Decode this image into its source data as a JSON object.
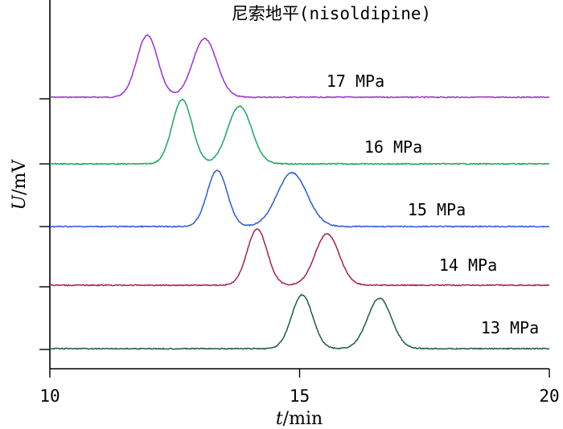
{
  "chart_data": {
    "type": "line",
    "title": "尼索地平(nisoldipine)",
    "xlabel": {
      "symbol": "t",
      "unit": "min"
    },
    "ylabel": {
      "symbol": "U",
      "unit": "mV"
    },
    "xlim": [
      10,
      20
    ],
    "xticks": [
      10,
      15,
      20
    ],
    "xtick_labels": [
      "10",
      "15",
      "20"
    ],
    "series": [
      {
        "name": "17 MPa",
        "color": "#9b30d9",
        "baseline": 0.0,
        "peaks": [
          {
            "x": 11.95,
            "height": 0.77,
            "sigma": 0.21
          },
          {
            "x": 13.1,
            "height": 0.73,
            "sigma": 0.24
          }
        ]
      },
      {
        "name": "16 MPa",
        "color": "#1aa85a",
        "baseline": 0.0,
        "peaks": [
          {
            "x": 12.65,
            "height": 0.8,
            "sigma": 0.2
          },
          {
            "x": 13.8,
            "height": 0.72,
            "sigma": 0.24
          }
        ]
      },
      {
        "name": "15 MPa",
        "color": "#2a5bd7",
        "baseline": 0.0,
        "peaks": [
          {
            "x": 13.35,
            "height": 0.7,
            "sigma": 0.2
          },
          {
            "x": 14.85,
            "height": 0.67,
            "sigma": 0.3
          }
        ]
      },
      {
        "name": "14 MPa",
        "color": "#a8224a",
        "baseline": 0.0,
        "peaks": [
          {
            "x": 14.15,
            "height": 0.7,
            "sigma": 0.2
          },
          {
            "x": 15.55,
            "height": 0.64,
            "sigma": 0.24
          }
        ]
      },
      {
        "name": "13 MPa",
        "color": "#1d5c4a",
        "baseline": 0.0,
        "peaks": [
          {
            "x": 15.05,
            "height": 0.67,
            "sigma": 0.21
          },
          {
            "x": 16.6,
            "height": 0.63,
            "sigma": 0.24
          }
        ]
      }
    ]
  }
}
